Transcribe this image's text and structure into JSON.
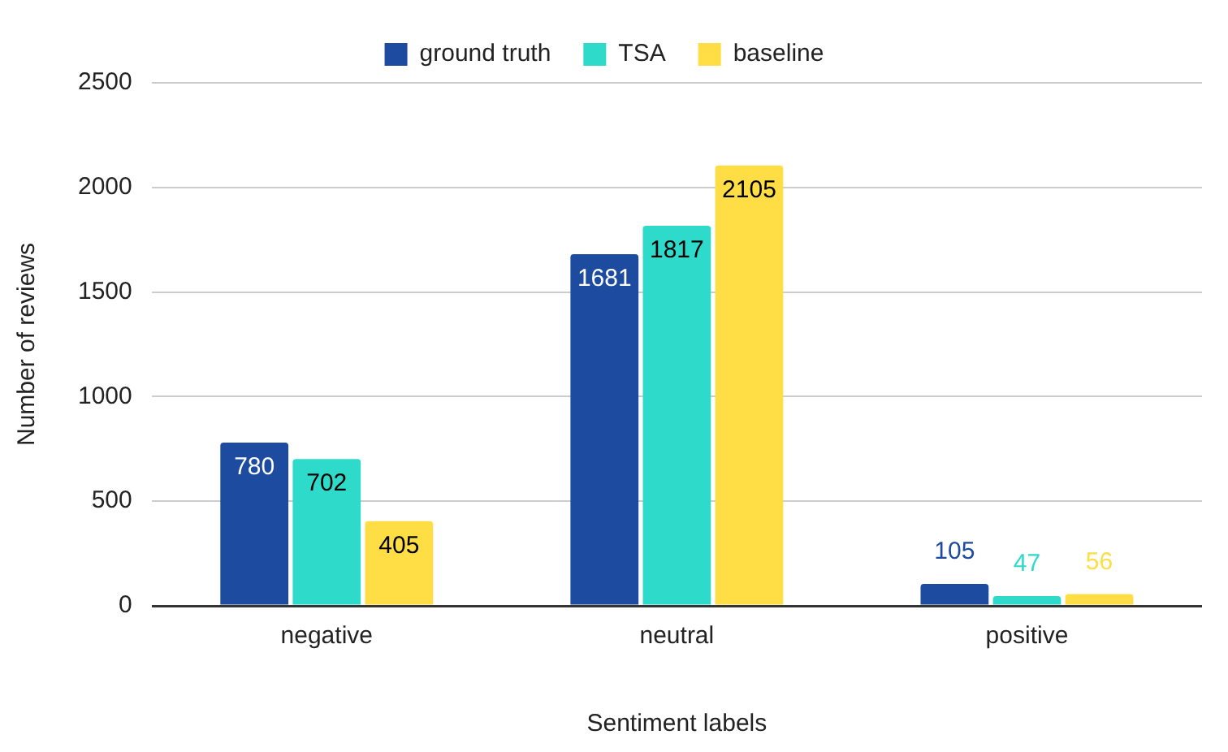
{
  "chart_data": {
    "type": "bar",
    "xlabel": "Sentiment labels",
    "ylabel": "Number of reviews",
    "categories": [
      "negative",
      "neutral",
      "positive"
    ],
    "series": [
      {
        "name": "ground truth",
        "color": "#1c4ba0",
        "values": [
          780,
          1681,
          105
        ]
      },
      {
        "name": "TSA",
        "color": "#2edbca",
        "values": [
          702,
          1817,
          47
        ]
      },
      {
        "name": "baseline",
        "color": "#fedd45",
        "values": [
          405,
          2105,
          56
        ]
      }
    ],
    "ylim": [
      0,
      2500
    ],
    "yticks": [
      0,
      500,
      1000,
      1500,
      2000,
      2500
    ],
    "grid": "y",
    "legend": "top",
    "data_labels": true
  }
}
